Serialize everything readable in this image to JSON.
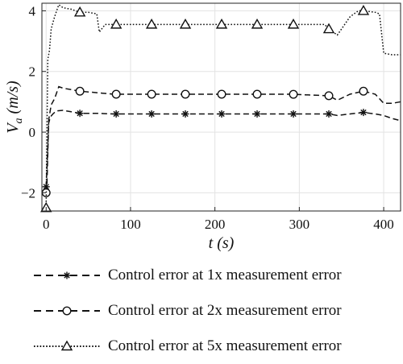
{
  "chart_data": {
    "type": "line",
    "xlabel": "t (s)",
    "ylabel": "V_a (m/s)",
    "xlim": [
      -5,
      420
    ],
    "ylim": [
      -2.6,
      4.25
    ],
    "x_ticks": [
      "0",
      "100",
      "200",
      "300",
      "400"
    ],
    "y_ticks": [
      "-2",
      "0",
      "2",
      "4"
    ],
    "grid": true,
    "legend_position": "below",
    "series": [
      {
        "name": "Control error at 1x measurement error",
        "marker": "asterisk",
        "line_style": "dashed",
        "x": [
          0,
          1,
          3,
          5,
          8,
          12,
          20,
          40,
          60,
          80,
          100,
          125,
          165,
          200,
          250,
          290,
          335,
          345,
          360,
          376,
          390,
          400,
          410,
          420
        ],
        "y": [
          -1.8,
          -1.2,
          0.3,
          0.5,
          0.6,
          0.7,
          0.72,
          0.62,
          0.62,
          0.6,
          0.6,
          0.6,
          0.6,
          0.6,
          0.6,
          0.6,
          0.6,
          0.55,
          0.6,
          0.65,
          0.6,
          0.55,
          0.45,
          0.38
        ],
        "markers_x": [
          0,
          40,
          83,
          125,
          165,
          208,
          250,
          293,
          335,
          376
        ]
      },
      {
        "name": "Control error at 2x measurement error",
        "marker": "circle",
        "line_style": "dashed",
        "x": [
          0,
          1,
          3,
          6,
          10,
          15,
          20,
          40,
          60,
          80,
          100,
          125,
          165,
          200,
          250,
          290,
          335,
          345,
          360,
          376,
          390,
          400,
          410,
          420
        ],
        "y": [
          -2.0,
          -1.7,
          0.4,
          0.9,
          1.1,
          1.5,
          1.45,
          1.35,
          1.3,
          1.25,
          1.25,
          1.25,
          1.25,
          1.25,
          1.25,
          1.25,
          1.2,
          1.05,
          1.25,
          1.35,
          1.25,
          0.95,
          0.95,
          1.0
        ],
        "markers_x": [
          0,
          40,
          83,
          125,
          165,
          208,
          250,
          293,
          335,
          376
        ]
      },
      {
        "name": "Control error at 5x measurement error",
        "marker": "triangle",
        "line_style": "dotted",
        "x": [
          0,
          2,
          4,
          6,
          10,
          15,
          20,
          30,
          40,
          50,
          60,
          63,
          70,
          83,
          100,
          125,
          165,
          200,
          250,
          300,
          330,
          335,
          345,
          360,
          370,
          376,
          390,
          395,
          400,
          410,
          420
        ],
        "y": [
          -2.5,
          2.4,
          2.7,
          3.4,
          3.8,
          4.2,
          4.1,
          4.05,
          3.95,
          3.95,
          3.9,
          3.3,
          3.55,
          3.55,
          3.55,
          3.55,
          3.55,
          3.55,
          3.55,
          3.55,
          3.55,
          3.4,
          3.2,
          3.8,
          4.0,
          4.0,
          3.95,
          3.9,
          2.6,
          2.55,
          2.55
        ],
        "markers_x": [
          0,
          40,
          83,
          125,
          165,
          208,
          250,
          293,
          335,
          376
        ]
      }
    ]
  }
}
